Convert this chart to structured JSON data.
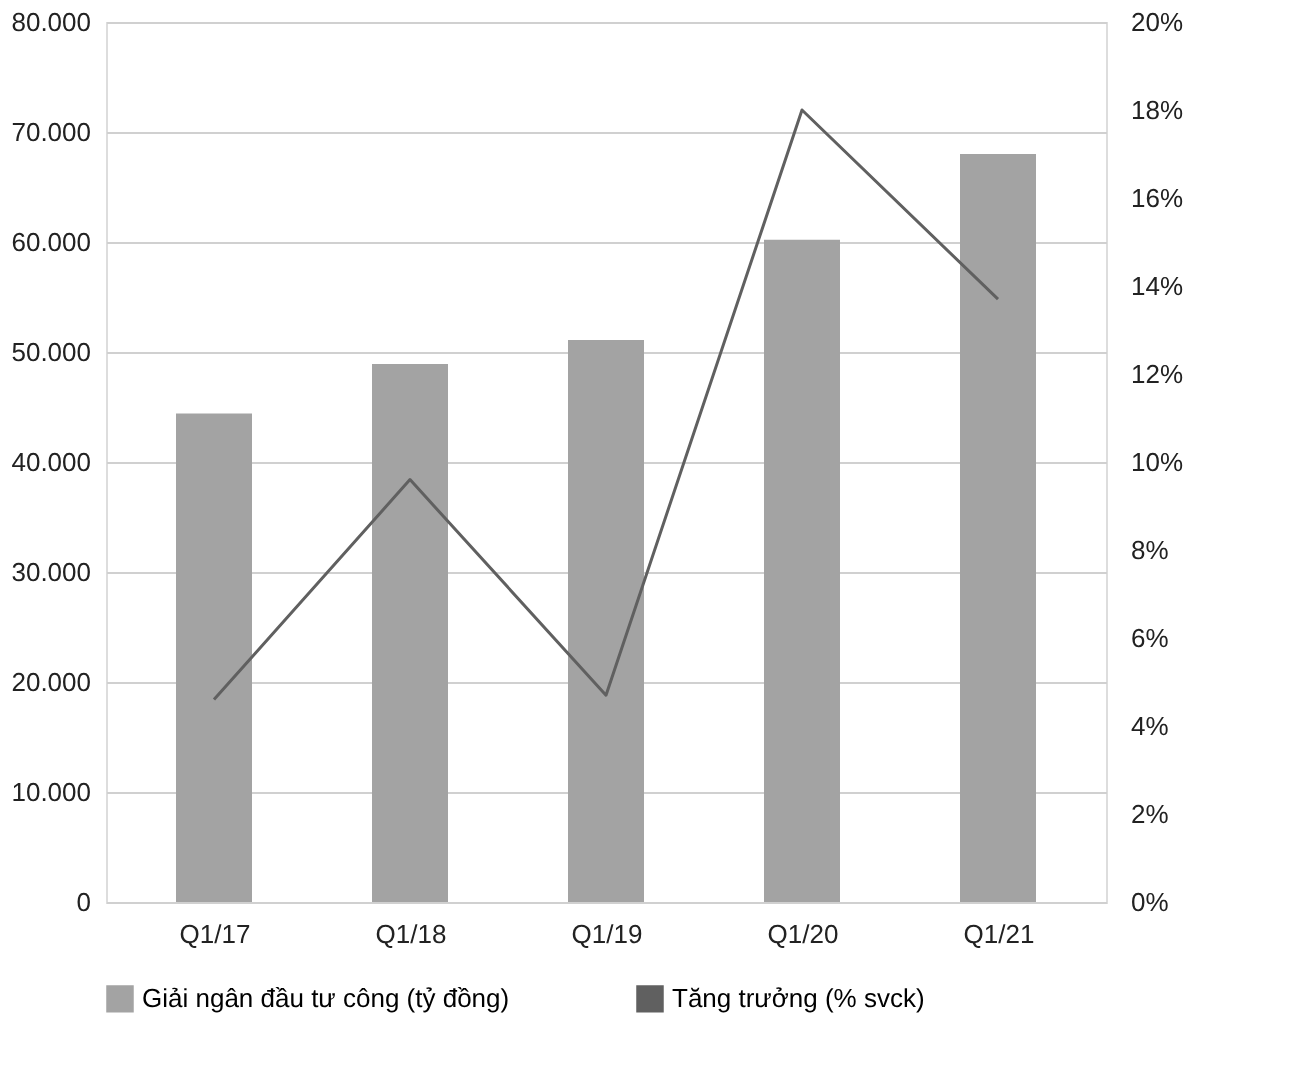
{
  "chart_data": {
    "type": "bar",
    "categories": [
      "Q1/17",
      "Q1/18",
      "Q1/19",
      "Q1/20",
      "Q1/21"
    ],
    "series": [
      {
        "name": "Giải ngân đầu tư công (tỷ đồng)",
        "color": "#a3a3a3",
        "values": [
          44400,
          48900,
          51100,
          60200,
          68000
        ]
      },
      {
        "name": "Tăng trưởng (% svck)",
        "type": "line",
        "axis": "y2",
        "color": "#606060",
        "values": [
          4.6,
          9.6,
          4.7,
          18.0,
          13.7
        ]
      }
    ],
    "ylim": [
      0,
      80000
    ],
    "yticks": [
      {
        "value": 0,
        "label": "0"
      },
      {
        "value": 10000,
        "label": "10.000"
      },
      {
        "value": 20000,
        "label": "20.000"
      },
      {
        "value": 30000,
        "label": "30.000"
      },
      {
        "value": 40000,
        "label": "40.000"
      },
      {
        "value": 50000,
        "label": "50.000"
      },
      {
        "value": 60000,
        "label": "60.000"
      },
      {
        "value": 70000,
        "label": "70.000"
      },
      {
        "value": 80000,
        "label": "80.000"
      }
    ],
    "y2lim": [
      0,
      20
    ],
    "y2ticks": [
      {
        "value": 0,
        "label": "0%"
      },
      {
        "value": 2,
        "label": "2%"
      },
      {
        "value": 4,
        "label": "4%"
      },
      {
        "value": 6,
        "label": "6%"
      },
      {
        "value": 8,
        "label": "8%"
      },
      {
        "value": 10,
        "label": "10%"
      },
      {
        "value": 12,
        "label": "12%"
      },
      {
        "value": 14,
        "label": "14%"
      },
      {
        "value": 16,
        "label": "16%"
      },
      {
        "value": 18,
        "label": "18%"
      },
      {
        "value": 20,
        "label": "20%"
      }
    ],
    "grid": "y",
    "legend": "bottom",
    "marker": "none",
    "line_style": "solid"
  }
}
